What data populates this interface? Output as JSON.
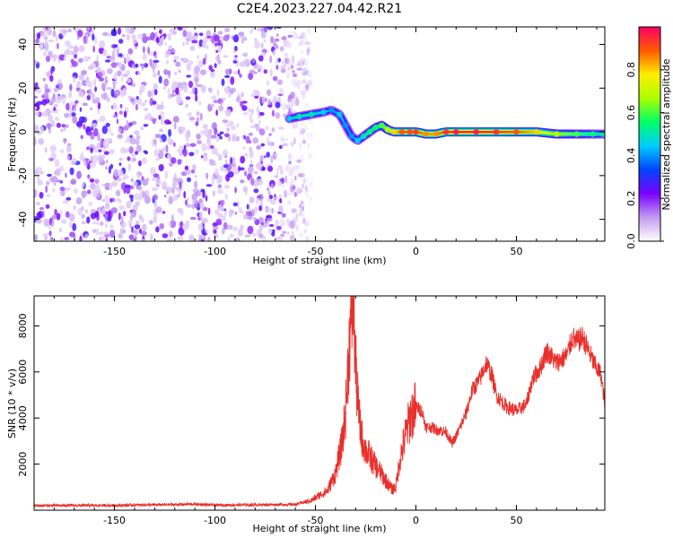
{
  "title": "C2E4.2023.227.04.42.R21",
  "chart_data": [
    {
      "type": "heatmap",
      "xlabel": "Height of straight line (km)",
      "ylabel": "Frequency (Hz)",
      "xlim": [
        -190,
        94
      ],
      "ylim": [
        -50,
        48
      ],
      "xticks": [
        -150,
        -100,
        -50,
        0,
        50
      ],
      "yticks": [
        -40,
        -20,
        0,
        20,
        40
      ],
      "colorbar": {
        "label": "Normalized spectral amplitude",
        "range": [
          0,
          1
        ],
        "ticks": [
          0.0,
          0.2,
          0.4,
          0.6,
          0.8
        ],
        "tick_labels": [
          "0.0",
          "0.2",
          "0.4",
          "0.6",
          "0.8"
        ],
        "colors": [
          "#ffffff",
          "#c39cf0",
          "#7a00ff",
          "#0044ff",
          "#00ccff",
          "#00ff66",
          "#aaff00",
          "#ffee00",
          "#ff5a00",
          "#ff0066"
        ]
      },
      "noise_region": {
        "x_range": [
          -190,
          -52
        ],
        "y_range": [
          -50,
          48
        ],
        "amplitude": [
          0.05,
          0.2
        ]
      },
      "ridge": {
        "x": [
          -63,
          -58,
          -52,
          -46,
          -42,
          -38,
          -35,
          -32,
          -29,
          -26,
          -23,
          -20,
          -17,
          -14,
          -11,
          -7,
          -3,
          0,
          5,
          10,
          15,
          20,
          30,
          40,
          50,
          60,
          70,
          80,
          88,
          93
        ],
        "frequency": [
          6,
          7,
          8,
          9,
          10,
          8,
          3,
          -2,
          -4,
          -2,
          0,
          2,
          3,
          1,
          0,
          0,
          0,
          0,
          -1,
          -1,
          0,
          0,
          0,
          0,
          0,
          0,
          -1,
          -1,
          -1,
          -1
        ],
        "amplitude": [
          0.45,
          0.5,
          0.5,
          0.45,
          0.4,
          0.45,
          0.4,
          0.4,
          0.45,
          0.5,
          0.55,
          0.55,
          0.6,
          0.7,
          0.8,
          0.9,
          0.92,
          0.93,
          0.85,
          0.85,
          0.95,
          0.97,
          0.97,
          0.95,
          0.9,
          0.8,
          0.7,
          0.6,
          0.55,
          0.5
        ]
      }
    },
    {
      "type": "line",
      "xlabel": "Height of straight line (km)",
      "ylabel": "SNR (10 * v/v)",
      "xlim": [
        -190,
        94
      ],
      "ylim": [
        0,
        9300
      ],
      "xticks": [
        -150,
        -100,
        -50,
        0,
        50
      ],
      "yticks": [
        2000,
        4000,
        6000,
        8000
      ],
      "series": [
        {
          "color": "#e8302c",
          "x": [
            -190,
            -150,
            -110,
            -100,
            -60,
            -52,
            -48,
            -44,
            -40,
            -37,
            -35,
            -33,
            -31,
            -30,
            -29,
            -28,
            -27,
            -25,
            -22,
            -20,
            -18,
            -15,
            -12,
            -10,
            -8,
            -5,
            -3,
            0,
            3,
            5,
            8,
            10,
            15,
            18,
            20,
            25,
            28,
            32,
            35,
            38,
            40,
            45,
            50,
            55,
            58,
            62,
            65,
            70,
            75,
            78,
            80,
            83,
            86,
            89,
            92,
            94
          ],
          "y": [
            200,
            210,
            260,
            220,
            250,
            420,
            650,
            850,
            1600,
            2800,
            4200,
            7500,
            9300,
            6200,
            4800,
            3800,
            3200,
            2600,
            2200,
            1900,
            1700,
            1300,
            900,
            1000,
            2200,
            3300,
            4000,
            4500,
            4300,
            3600,
            3600,
            3500,
            3400,
            2900,
            3200,
            4200,
            5200,
            5700,
            6400,
            5800,
            5000,
            4500,
            4300,
            4600,
            5700,
            6200,
            6900,
            6400,
            6700,
            7500,
            7300,
            7500,
            6900,
            6300,
            5900,
            4600
          ]
        }
      ]
    }
  ]
}
